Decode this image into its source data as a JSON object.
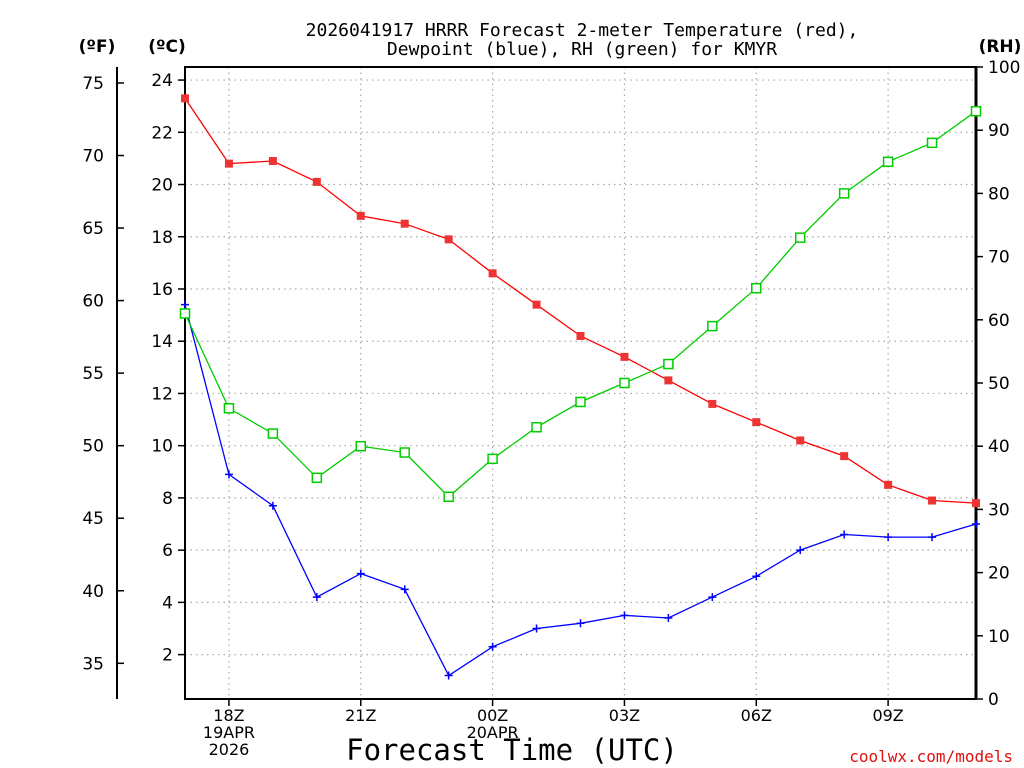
{
  "chart_data": {
    "type": "line",
    "title_line1": "2026041917 HRRR Forecast 2-meter Temperature (red),",
    "title_line2": "Dewpoint (blue), RH (green) for KMYR",
    "xlabel": "Forecast Time (UTC)",
    "watermark": "coolwx.com/models",
    "unit_labels": {
      "fahrenheit": "(ºF)",
      "celsius": "(ºC)",
      "rh": "(RH)"
    },
    "x_hours": [
      17,
      18,
      19,
      20,
      21,
      22,
      23,
      24,
      25,
      26,
      27,
      28,
      29,
      30,
      31,
      32,
      33,
      34,
      35
    ],
    "x_range": [
      17,
      35
    ],
    "x_ticks": [
      {
        "hour": 18,
        "lines": [
          "18Z",
          "19APR",
          "2026"
        ]
      },
      {
        "hour": 21,
        "lines": [
          "21Z"
        ]
      },
      {
        "hour": 24,
        "lines": [
          "00Z",
          "20APR"
        ]
      },
      {
        "hour": 27,
        "lines": [
          "03Z"
        ]
      },
      {
        "hour": 30,
        "lines": [
          "06Z"
        ]
      },
      {
        "hour": 33,
        "lines": [
          "09Z"
        ]
      }
    ],
    "celsius_axis": {
      "min": 0.3,
      "max": 24.5,
      "ticks": [
        2,
        4,
        6,
        8,
        10,
        12,
        14,
        16,
        18,
        20,
        22,
        24
      ]
    },
    "fahrenheit_ticks": [
      35,
      40,
      45,
      50,
      55,
      60,
      65,
      70,
      75
    ],
    "rh_axis": {
      "min": 0,
      "max": 100,
      "ticks": [
        0,
        10,
        20,
        30,
        40,
        50,
        60,
        70,
        80,
        90,
        100
      ]
    },
    "series": [
      {
        "name": "Temperature",
        "unit": "C",
        "color": "#ff0000",
        "marker": "filled-square",
        "values": [
          23.3,
          20.8,
          20.9,
          20.1,
          18.8,
          18.5,
          17.9,
          16.6,
          15.4,
          14.2,
          13.4,
          12.5,
          11.6,
          10.9,
          10.2,
          9.6,
          8.5,
          7.9,
          7.8
        ]
      },
      {
        "name": "Dewpoint",
        "unit": "C",
        "color": "#0000ff",
        "marker": "plus",
        "values": [
          15.4,
          8.9,
          7.7,
          4.2,
          5.1,
          4.5,
          1.2,
          2.3,
          3.0,
          3.2,
          3.5,
          3.4,
          4.2,
          5.0,
          6.0,
          6.6,
          6.5,
          6.5,
          7.0
        ]
      },
      {
        "name": "RH",
        "unit": "%",
        "color": "#00cc00",
        "marker": "open-square",
        "values": [
          61,
          46,
          42,
          35,
          40,
          39,
          32,
          38,
          43,
          47,
          50,
          53,
          59,
          65,
          73,
          80,
          85,
          88,
          93
        ]
      }
    ]
  }
}
